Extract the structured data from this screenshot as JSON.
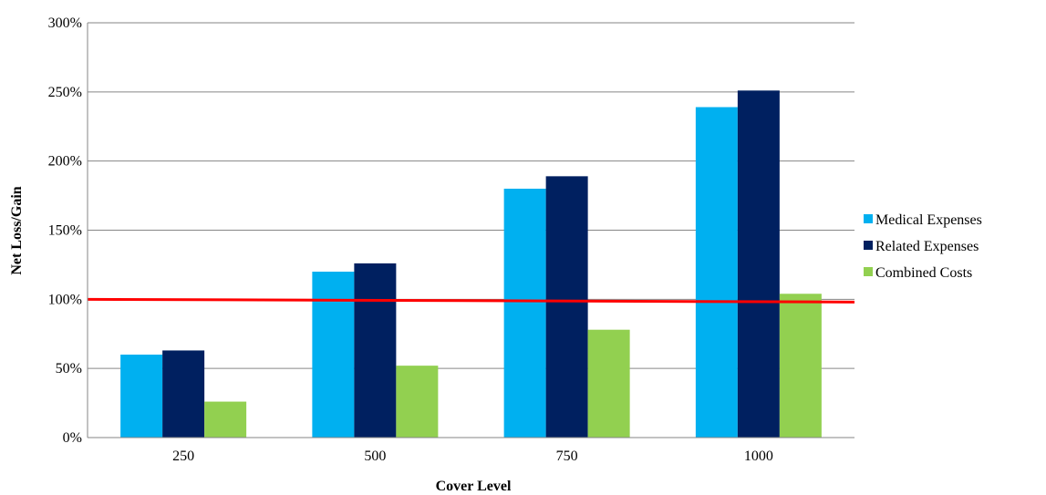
{
  "chart_data": {
    "type": "bar",
    "categories": [
      "250",
      "500",
      "750",
      "1000"
    ],
    "series": [
      {
        "name": "Medical Expenses",
        "values": [
          60,
          120,
          180,
          239
        ],
        "color": "#00B0F0"
      },
      {
        "name": "Related Expenses",
        "values": [
          63,
          126,
          189,
          251
        ],
        "color": "#002060"
      },
      {
        "name": "Combined Costs",
        "values": [
          26,
          52,
          78,
          104
        ],
        "color": "#92D050"
      }
    ],
    "y_ticks": [
      "0%",
      "50%",
      "100%",
      "150%",
      "200%",
      "250%",
      "300%"
    ],
    "ylim": [
      0,
      300
    ],
    "xlabel": "Cover Level",
    "ylabel": "Net Loss/Gain",
    "reference_line": {
      "value": 100,
      "color": "#FF0000"
    },
    "grid": true,
    "legend_position": "right",
    "gridline_color": "#868686"
  }
}
